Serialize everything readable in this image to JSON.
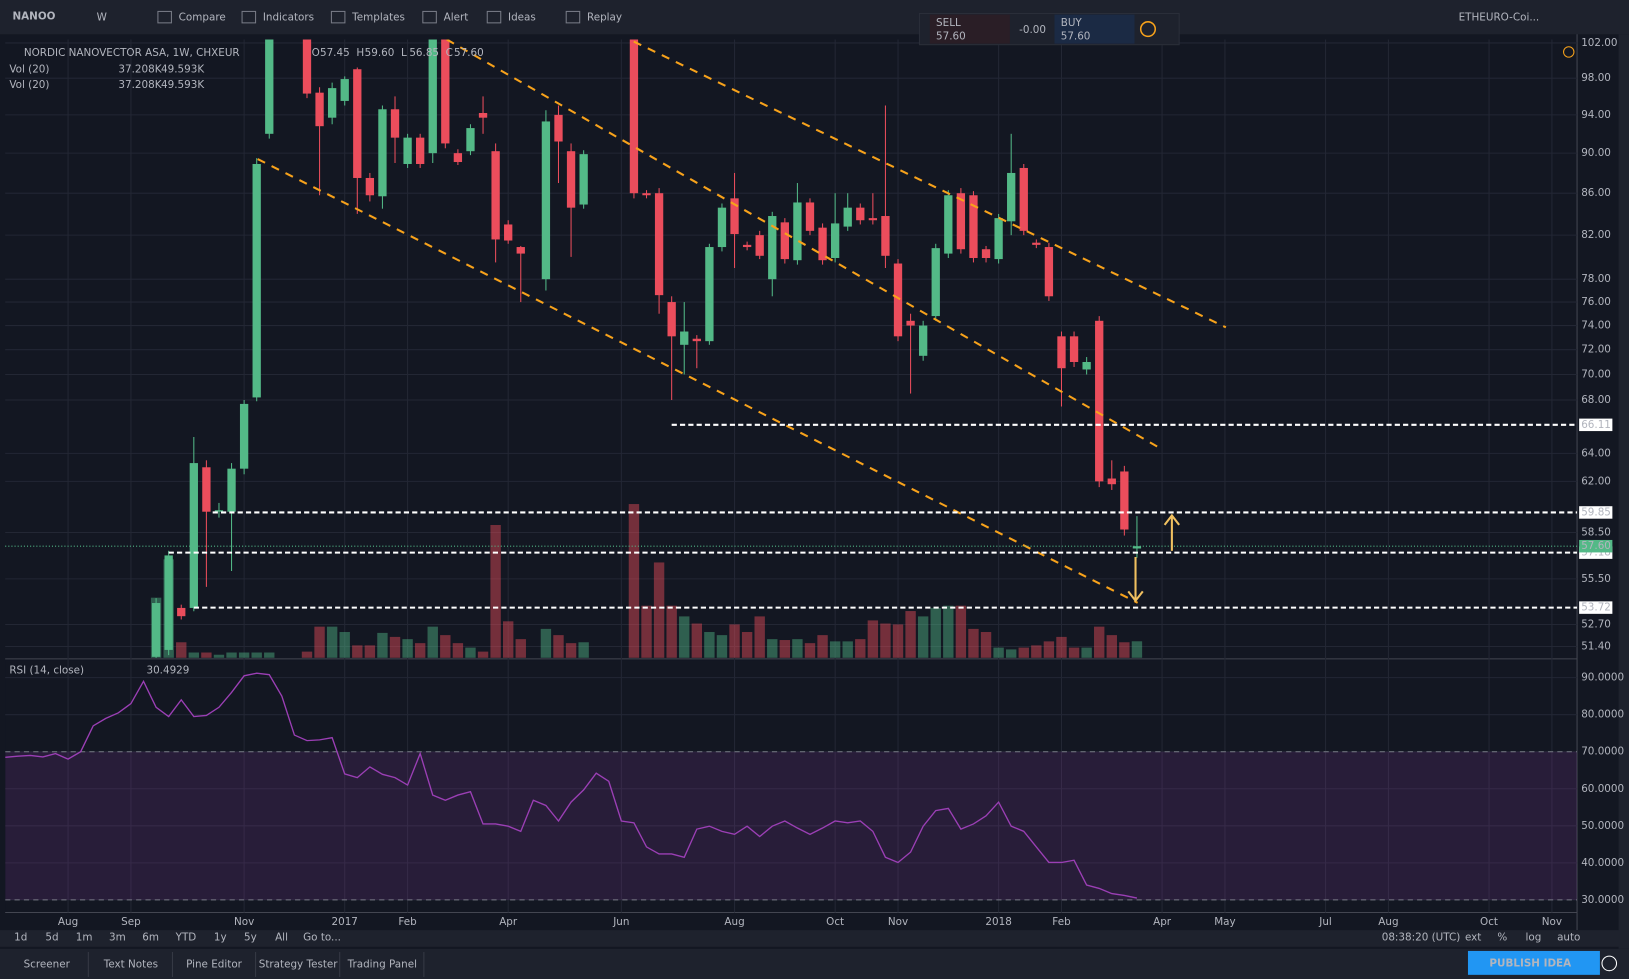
{
  "toolbar": {
    "symbol": "NANOO",
    "interval": "W",
    "items": [
      "Compare",
      "Indicators",
      "Templates",
      "Alert",
      "Ideas",
      "Replay"
    ],
    "watch": "ETHEURO-Coi..."
  },
  "trade_widget": {
    "sell_label": "SELL",
    "sell_price": "57.60",
    "spread": "-0.00",
    "buy_label": "BUY",
    "buy_price": "57.60"
  },
  "chart_data": {
    "type": "candlestick",
    "title": "NORDIC NANOVECTOR ASA, 1W, CHXEUR",
    "ohlc_legend": [
      {
        "label": "O",
        "value": "57.45"
      },
      {
        "label": "H",
        "value": "59.60"
      },
      {
        "label": "L",
        "value": "56.85"
      },
      {
        "label": "C",
        "value": "57.60"
      }
    ],
    "volume_legend": [
      {
        "label": "Vol (20)",
        "value": "37.208K",
        "ma": "49.593K"
      },
      {
        "label": "Vol (20)",
        "value": "37.208K",
        "ma": "49.593K"
      }
    ],
    "log_scale": true,
    "grid": true,
    "up_color": "#53b987",
    "down_color": "#eb4d5c",
    "xlim": [
      -12,
      113
    ],
    "xticks": [
      {
        "value": -7,
        "label": "Aug"
      },
      {
        "value": -2,
        "label": "Sep"
      },
      {
        "value": 7,
        "label": "Nov"
      },
      {
        "value": 15,
        "label": "2017"
      },
      {
        "value": 20,
        "label": "Feb"
      },
      {
        "value": 28,
        "label": "Apr"
      },
      {
        "value": 37,
        "label": "Jun"
      },
      {
        "value": 46,
        "label": "Aug"
      },
      {
        "value": 54,
        "label": "Oct"
      },
      {
        "value": 59,
        "label": "Nov"
      },
      {
        "value": 67,
        "label": "2018"
      },
      {
        "value": 72,
        "label": "Feb"
      },
      {
        "value": 80,
        "label": "Apr"
      },
      {
        "value": 85,
        "label": "May"
      },
      {
        "value": 93,
        "label": "Jul"
      },
      {
        "value": 98,
        "label": "Aug"
      },
      {
        "value": 106,
        "label": "Oct"
      },
      {
        "value": 111,
        "label": "Nov"
      }
    ],
    "ylim": [
      50.74,
      102.4
    ],
    "yticks": [
      {
        "value": 102,
        "label": "102.00"
      },
      {
        "value": 98,
        "label": "98.00"
      },
      {
        "value": 94,
        "label": "94.00"
      },
      {
        "value": 90,
        "label": "90.00"
      },
      {
        "value": 86,
        "label": "86.00"
      },
      {
        "value": 82,
        "label": "82.00"
      },
      {
        "value": 78,
        "label": "78.00"
      },
      {
        "value": 76,
        "label": "76.00"
      },
      {
        "value": 74,
        "label": "74.00"
      },
      {
        "value": 72,
        "label": "72.00"
      },
      {
        "value": 70,
        "label": "70.00"
      },
      {
        "value": 68,
        "label": "68.00"
      },
      {
        "value": 64,
        "label": "64.00"
      },
      {
        "value": 62,
        "label": "62.00"
      },
      {
        "value": 58.5,
        "label": "58.50"
      },
      {
        "value": 55.5,
        "label": "55.50"
      },
      {
        "value": 52.7,
        "label": "52.70"
      },
      {
        "value": 51.4,
        "label": "51.40"
      }
    ],
    "hlines": [
      {
        "value": 66.11,
        "from": 41
      },
      {
        "value": 59.85,
        "from": 4.5
      },
      {
        "value": 57.18,
        "from": 1
      },
      {
        "value": 53.72,
        "from": 3
      }
    ],
    "last_price": {
      "value": 57.6,
      "label": "57.60"
    },
    "candles": {
      "x": [
        0,
        1,
        2,
        3,
        4,
        5,
        6,
        7,
        8,
        9,
        12,
        13,
        14,
        15,
        16,
        17,
        18,
        19,
        20,
        21,
        22,
        23,
        24,
        25,
        26,
        27,
        28,
        29,
        31,
        32,
        33,
        34,
        38,
        39,
        40,
        41,
        42,
        43,
        44,
        45,
        46,
        47,
        48,
        49,
        50,
        51,
        52,
        53,
        54,
        55,
        56,
        57,
        58,
        59,
        60,
        61,
        62,
        63,
        64,
        65,
        66,
        67,
        68,
        69,
        70,
        71,
        72,
        73,
        74,
        75,
        76,
        77,
        78
      ],
      "open": [
        50.8,
        51.2,
        53.7,
        53.7,
        63.0,
        59.9,
        59.9,
        62.9,
        68.2,
        92.0,
        103.5,
        96.4,
        93.7,
        95.5,
        99.0,
        87.5,
        85.7,
        94.6,
        88.9,
        91.6,
        90.0,
        103,
        90.0,
        90.2,
        94.2,
        90.2,
        83.0,
        80.9,
        78.0,
        94.0,
        90.2,
        84.9,
        103.5,
        86.0,
        86.0,
        76.0,
        72.4,
        72.9,
        72.7,
        80.9,
        85.5,
        81.1,
        82.0,
        78.0,
        83.2,
        79.7,
        85.1,
        82.7,
        79.9,
        82.8,
        84.6,
        83.6,
        83.8,
        79.4,
        74.4,
        71.5,
        74.8,
        80.3,
        86.0,
        85.8,
        80.7,
        79.8,
        83.3,
        88.5,
        81.3,
        80.9,
        73.1,
        73.1,
        70.4,
        74.4,
        62.2,
        62.7,
        57.45
      ],
      "high": [
        54.3,
        57.3,
        53.9,
        65.2,
        63.5,
        60.5,
        63.3,
        68.0,
        89.5,
        104,
        104,
        97.0,
        97.5,
        98.2,
        99.2,
        88.0,
        95.0,
        96.0,
        92.0,
        92.0,
        104,
        104,
        90.4,
        93.0,
        96.0,
        91.0,
        83.4,
        81.0,
        94.5,
        95.0,
        91.0,
        90.3,
        104,
        86.3,
        86.5,
        76.5,
        76.0,
        73.2,
        81.2,
        85.0,
        88.0,
        81.4,
        82.4,
        84.2,
        83.6,
        87.0,
        85.5,
        83.1,
        86.0,
        86.0,
        85.0,
        86.0,
        95.0,
        79.8,
        75.0,
        74.4,
        81.2,
        86.3,
        86.5,
        86.2,
        81.0,
        84.0,
        92.0,
        88.9,
        81.6,
        81.3,
        73.5,
        73.5,
        71.4,
        74.8,
        63.5,
        63.1,
        59.6
      ],
      "low": [
        50.6,
        50.9,
        53.0,
        53.5,
        55.0,
        59.5,
        56.0,
        62.5,
        67.9,
        91.5,
        95.8,
        85.8,
        93.0,
        95.0,
        84.0,
        85.2,
        84.5,
        89.0,
        88.5,
        88.5,
        89.0,
        90.5,
        88.8,
        89.8,
        92.0,
        79.5,
        81.2,
        76.0,
        77.0,
        87.0,
        80.0,
        84.5,
        85.5,
        85.5,
        75.0,
        68.0,
        70.0,
        70.5,
        72.4,
        80.5,
        79.0,
        80.6,
        79.8,
        76.5,
        79.4,
        79.3,
        82.0,
        79.3,
        79.5,
        82.4,
        83.0,
        83.0,
        79.0,
        72.7,
        68.5,
        71.1,
        74.4,
        79.9,
        80.3,
        79.5,
        79.5,
        79.4,
        82.0,
        82.0,
        80.8,
        76.1,
        67.5,
        70.6,
        70.0,
        61.6,
        61.4,
        58.3,
        56.85
      ],
      "close": [
        54.0,
        57.0,
        53.2,
        63.3,
        59.9,
        60.0,
        62.9,
        67.7,
        88.9,
        103,
        96.3,
        92.8,
        96.9,
        97.9,
        87.5,
        85.8,
        94.6,
        91.6,
        91.6,
        88.9,
        103,
        91.0,
        89.1,
        92.6,
        93.7,
        81.6,
        81.5,
        80.3,
        93.3,
        91.2,
        84.6,
        89.9,
        86.0,
        85.8,
        76.6,
        73.1,
        73.5,
        72.7,
        80.9,
        84.6,
        82.1,
        80.9,
        80.1,
        83.8,
        79.8,
        85.1,
        82.4,
        79.7,
        83.1,
        84.6,
        83.4,
        83.4,
        80.1,
        73.1,
        74.0,
        74.0,
        80.8,
        85.8,
        80.7,
        79.9,
        79.9,
        83.6,
        88.0,
        82.4,
        81.1,
        76.5,
        70.5,
        71.0,
        71.0,
        62.0,
        61.8,
        58.7,
        57.6
      ],
      "volume": [
        135,
        221,
        35,
        12,
        12,
        7,
        12,
        12,
        12,
        12,
        14,
        70,
        70,
        58,
        28,
        28,
        56,
        47,
        42,
        33,
        70,
        51,
        33,
        23,
        14,
        298,
        82,
        42,
        65,
        51,
        33,
        35,
        345,
        117,
        214,
        117,
        93,
        77,
        58,
        51,
        75,
        58,
        93,
        42,
        40,
        42,
        33,
        51,
        37,
        37,
        42,
        84,
        77,
        75,
        105,
        93,
        112,
        117,
        117,
        65,
        58,
        23,
        19,
        23,
        28,
        37,
        47,
        23,
        23,
        70,
        51,
        35,
        37.208
      ]
    },
    "vlim": [
      0,
      1387
    ],
    "rsi": {
      "label": "RSI (14, close)",
      "value_label": "30.4929",
      "color": "#9b3fb5",
      "ylim": [
        26.6,
        94.5
      ],
      "yticks": [
        {
          "value": 90,
          "label": "90.0000"
        },
        {
          "value": 80,
          "label": "80.0000"
        },
        {
          "value": 70,
          "label": "70.0000"
        },
        {
          "value": 60,
          "label": "60.0000"
        },
        {
          "value": 50,
          "label": "50.0000"
        },
        {
          "value": 40,
          "label": "40.0000"
        },
        {
          "value": 30,
          "label": "30.0000"
        }
      ],
      "bands": [
        70,
        30
      ],
      "x": [
        -12,
        -11,
        -10,
        -9,
        -8,
        -7,
        -6,
        -5,
        -4,
        -3,
        -2,
        -1,
        0,
        1,
        2,
        3,
        4,
        5,
        6,
        7,
        8,
        9,
        10,
        11,
        12,
        13,
        14,
        15,
        16,
        17,
        18,
        19,
        20,
        21,
        22,
        23,
        24,
        25,
        26,
        27,
        28,
        29,
        30,
        31,
        32,
        33,
        34,
        35,
        36,
        37,
        38,
        39,
        40,
        41,
        42,
        43,
        44,
        45,
        46,
        47,
        48,
        49,
        50,
        51,
        52,
        53,
        54,
        55,
        56,
        57,
        58,
        59,
        60,
        61,
        62,
        63,
        64,
        65,
        66,
        67,
        68,
        69,
        70,
        71,
        72,
        73,
        74,
        75,
        76,
        77,
        78
      ],
      "values": [
        68.5,
        68.8,
        69,
        68.6,
        69.5,
        68,
        70,
        77,
        79,
        80.5,
        83,
        89,
        82,
        79.5,
        84,
        79.5,
        79.8,
        82,
        86,
        90.5,
        91.2,
        90.8,
        85,
        74.5,
        73,
        73.2,
        73.8,
        64,
        63,
        65.9,
        63.9,
        63,
        61,
        69.5,
        58.3,
        56.9,
        58.3,
        59.2,
        50.5,
        50.5,
        49.9,
        48.5,
        56.9,
        55.5,
        51.3,
        56.4,
        59.7,
        64.2,
        62,
        51.3,
        50.8,
        44.3,
        42.4,
        42.4,
        41.5,
        49.1,
        49.9,
        48.5,
        47.7,
        49.9,
        47.1,
        49.9,
        51.3,
        49.4,
        47.7,
        49.4,
        51.3,
        50.8,
        51.3,
        48.5,
        41.5,
        40.1,
        42.9,
        49.9,
        54.1,
        54.7,
        49.1,
        50.5,
        52.7,
        56.4,
        49.9,
        48.5,
        44.3,
        40.1,
        40.1,
        40.7,
        34,
        33.1,
        31.7,
        31.2,
        30.4929
      ]
    }
  },
  "bottom_bar": {
    "ranges": [
      "1d",
      "5d",
      "1m",
      "3m",
      "6m",
      "YTD",
      "1y",
      "5y",
      "All",
      "Go to..."
    ],
    "clock": "08:38:20 (UTC)",
    "options": [
      "ext",
      "%",
      "log",
      "auto"
    ]
  },
  "tabs": [
    "Screener",
    "Text Notes",
    "Pine Editor",
    "Strategy Tester",
    "Trading Panel"
  ],
  "publish": "PUBLISH IDEA"
}
